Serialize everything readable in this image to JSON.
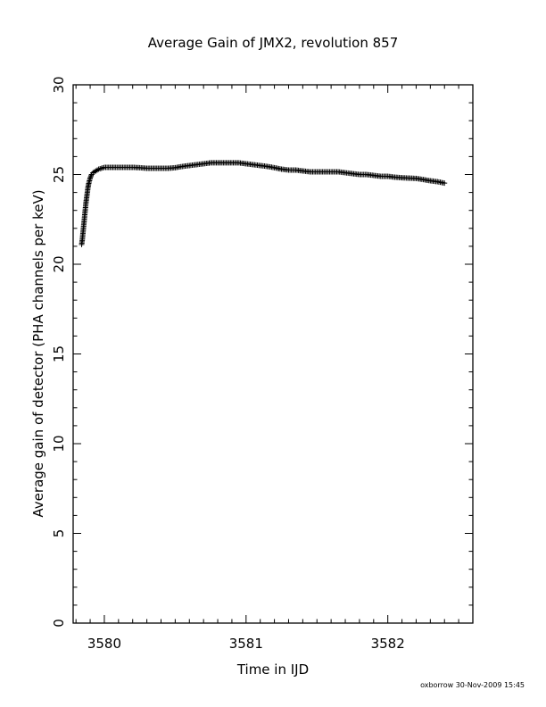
{
  "chart_data": {
    "type": "scatter",
    "title": "Average Gain of JMX2, revolution 857",
    "xlabel": "Time in IJD",
    "ylabel": "Average gain of detector (PHA channels per keV)",
    "xlim": [
      3579.78,
      3582.6
    ],
    "ylim": [
      0,
      30
    ],
    "x_ticks": [
      3580,
      3581,
      3582
    ],
    "y_ticks": [
      0,
      5,
      10,
      15,
      20,
      25,
      30
    ],
    "x_minor_step": 0.1,
    "y_minor_step": 1,
    "marker": "plus",
    "grid": false,
    "series": [
      {
        "points": [
          [
            3579.84,
            21.1
          ],
          [
            3579.845,
            21.4
          ],
          [
            3579.85,
            21.8
          ],
          [
            3579.855,
            22.2
          ],
          [
            3579.86,
            22.6
          ],
          [
            3579.865,
            23.0
          ],
          [
            3579.87,
            23.4
          ],
          [
            3579.875,
            23.7
          ],
          [
            3579.88,
            24.0
          ],
          [
            3579.885,
            24.3
          ],
          [
            3579.89,
            24.5
          ],
          [
            3579.9,
            24.8
          ],
          [
            3579.91,
            25.0
          ],
          [
            3579.92,
            25.1
          ],
          [
            3579.94,
            25.2
          ],
          [
            3579.96,
            25.3
          ],
          [
            3579.98,
            25.35
          ],
          [
            3580.0,
            25.4
          ],
          [
            3580.05,
            25.4
          ],
          [
            3580.1,
            25.4
          ],
          [
            3580.15,
            25.4
          ],
          [
            3580.2,
            25.4
          ],
          [
            3580.25,
            25.38
          ],
          [
            3580.3,
            25.35
          ],
          [
            3580.35,
            25.35
          ],
          [
            3580.4,
            25.35
          ],
          [
            3580.45,
            25.35
          ],
          [
            3580.5,
            25.38
          ],
          [
            3580.55,
            25.45
          ],
          [
            3580.6,
            25.5
          ],
          [
            3580.65,
            25.55
          ],
          [
            3580.7,
            25.6
          ],
          [
            3580.75,
            25.65
          ],
          [
            3580.8,
            25.65
          ],
          [
            3580.85,
            25.65
          ],
          [
            3580.9,
            25.65
          ],
          [
            3580.95,
            25.65
          ],
          [
            3581.0,
            25.6
          ],
          [
            3581.05,
            25.55
          ],
          [
            3581.1,
            25.5
          ],
          [
            3581.15,
            25.45
          ],
          [
            3581.2,
            25.38
          ],
          [
            3581.25,
            25.3
          ],
          [
            3581.3,
            25.25
          ],
          [
            3581.35,
            25.25
          ],
          [
            3581.4,
            25.2
          ],
          [
            3581.45,
            25.15
          ],
          [
            3581.5,
            25.15
          ],
          [
            3581.55,
            25.15
          ],
          [
            3581.6,
            25.15
          ],
          [
            3581.65,
            25.15
          ],
          [
            3581.7,
            25.1
          ],
          [
            3581.75,
            25.05
          ],
          [
            3581.8,
            25.0
          ],
          [
            3581.85,
            25.0
          ],
          [
            3581.9,
            24.95
          ],
          [
            3581.95,
            24.9
          ],
          [
            3582.0,
            24.9
          ],
          [
            3582.05,
            24.85
          ],
          [
            3582.1,
            24.82
          ],
          [
            3582.15,
            24.8
          ],
          [
            3582.2,
            24.78
          ],
          [
            3582.25,
            24.72
          ],
          [
            3582.3,
            24.65
          ],
          [
            3582.35,
            24.6
          ],
          [
            3582.4,
            24.52
          ]
        ]
      }
    ]
  },
  "footer": {
    "stamp": "oxborrow 30-Nov-2009 15:45"
  }
}
